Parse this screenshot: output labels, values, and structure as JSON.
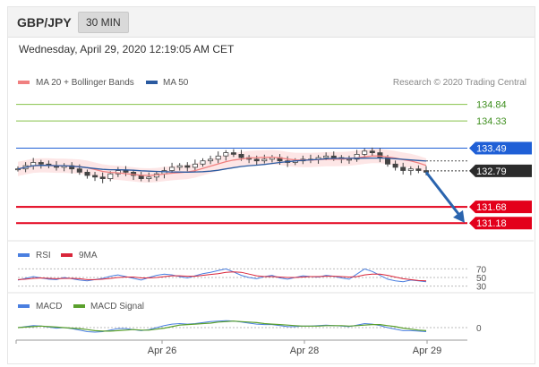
{
  "header": {
    "pair": "GBP/JPY",
    "timeframe": "30 MIN",
    "datetime": "Wednesday, April 29, 2020 12:19:05 AM CET"
  },
  "legend": {
    "ma20": "MA 20 + Bollinger Bands",
    "ma50": "MA 50",
    "credit": "Research © 2020 Trading Central",
    "rsi": "RSI",
    "rsi_ma": "9MA",
    "macd": "MACD",
    "macd_signal": "MACD Signal"
  },
  "colors": {
    "ma20": "#f08080",
    "ma50": "#2a5aa0",
    "bollinger": "#fde6e6",
    "candle": "#444444",
    "resistance_blue": "#1f5fd6",
    "support_red": "#e3001b",
    "target_green": "#86c24a",
    "arrow": "#2a64ae",
    "rsi": "#4a7fe0",
    "rsi_ma": "#d9253a",
    "macd": "#4a7fe0",
    "macd_signal": "#5aa02c"
  },
  "chart_data": {
    "type": "line",
    "x_ticks": [
      "Apr 26",
      "Apr 28",
      "Apr 29"
    ],
    "price_panel": {
      "ylim": [
        130.8,
        135.3
      ],
      "levels": [
        {
          "label": "134.84",
          "value": 134.84,
          "kind": "target"
        },
        {
          "label": "134.33",
          "value": 134.33,
          "kind": "target"
        },
        {
          "label": "133.49",
          "value": 133.49,
          "kind": "resistance"
        },
        {
          "label": "132.79",
          "value": 132.79,
          "kind": "current"
        },
        {
          "label": "131.68",
          "value": 131.68,
          "kind": "support"
        },
        {
          "label": "131.18",
          "value": 131.18,
          "kind": "support"
        }
      ],
      "close": [
        132.85,
        132.95,
        133.05,
        133.0,
        132.95,
        132.9,
        132.95,
        132.85,
        132.75,
        132.65,
        132.6,
        132.55,
        132.7,
        132.8,
        132.75,
        132.65,
        132.55,
        132.6,
        132.7,
        132.8,
        132.9,
        132.95,
        132.9,
        133.0,
        133.1,
        133.15,
        133.25,
        133.35,
        133.3,
        133.2,
        133.15,
        133.1,
        133.15,
        133.2,
        133.1,
        133.05,
        133.1,
        133.15,
        133.15,
        133.2,
        133.25,
        133.2,
        133.15,
        133.15,
        133.3,
        133.4,
        133.35,
        133.2,
        133.0,
        132.9,
        132.8,
        132.85,
        132.8,
        132.75
      ]
    },
    "rsi_panel": {
      "ylim": [
        25,
        75
      ],
      "ticks": [
        {
          "label": "70",
          "value": 70
        },
        {
          "label": "50",
          "value": 50
        },
        {
          "label": "30",
          "value": 30
        }
      ],
      "rsi": [
        44,
        48,
        52,
        49,
        46,
        45,
        50,
        47,
        44,
        42,
        45,
        48,
        53,
        56,
        52,
        48,
        44,
        50,
        55,
        58,
        56,
        52,
        49,
        54,
        59,
        62,
        66,
        70,
        63,
        55,
        50,
        47,
        52,
        55,
        49,
        46,
        50,
        54,
        52,
        51,
        55,
        53,
        49,
        46,
        58,
        70,
        64,
        55,
        46,
        42,
        40,
        44,
        42,
        40
      ],
      "ma": [
        45,
        46,
        48,
        49,
        48,
        47,
        48,
        48,
        47,
        45,
        45,
        46,
        48,
        50,
        51,
        51,
        49,
        49,
        50,
        52,
        54,
        54,
        53,
        53,
        55,
        57,
        59,
        62,
        63,
        62,
        58,
        54,
        52,
        52,
        51,
        50,
        50,
        51,
        52,
        52,
        53,
        53,
        52,
        51,
        52,
        56,
        58,
        58,
        55,
        51,
        47,
        45,
        43,
        42
      ]
    },
    "macd_panel": {
      "ylim": [
        -0.25,
        0.25
      ],
      "ticks": [
        {
          "label": "0",
          "value": 0
        }
      ],
      "macd": [
        0.0,
        0.02,
        0.04,
        0.03,
        0.01,
        -0.01,
        0.0,
        -0.02,
        -0.05,
        -0.08,
        -0.09,
        -0.08,
        -0.05,
        -0.02,
        -0.02,
        -0.04,
        -0.06,
        -0.04,
        0.0,
        0.04,
        0.07,
        0.08,
        0.07,
        0.08,
        0.1,
        0.12,
        0.13,
        0.14,
        0.13,
        0.11,
        0.09,
        0.07,
        0.06,
        0.06,
        0.04,
        0.02,
        0.02,
        0.03,
        0.03,
        0.04,
        0.05,
        0.04,
        0.03,
        0.02,
        0.05,
        0.08,
        0.07,
        0.04,
        0.0,
        -0.03,
        -0.06,
        -0.06,
        -0.07,
        -0.08
      ],
      "signal": [
        0.0,
        0.01,
        0.02,
        0.03,
        0.02,
        0.01,
        0.0,
        -0.01,
        -0.02,
        -0.04,
        -0.06,
        -0.07,
        -0.07,
        -0.06,
        -0.05,
        -0.04,
        -0.05,
        -0.05,
        -0.03,
        -0.01,
        0.02,
        0.05,
        0.06,
        0.07,
        0.08,
        0.09,
        0.11,
        0.12,
        0.13,
        0.12,
        0.11,
        0.1,
        0.08,
        0.07,
        0.06,
        0.05,
        0.04,
        0.03,
        0.03,
        0.03,
        0.04,
        0.04,
        0.04,
        0.03,
        0.04,
        0.05,
        0.06,
        0.06,
        0.04,
        0.02,
        -0.01,
        -0.03,
        -0.05,
        -0.06
      ]
    }
  }
}
